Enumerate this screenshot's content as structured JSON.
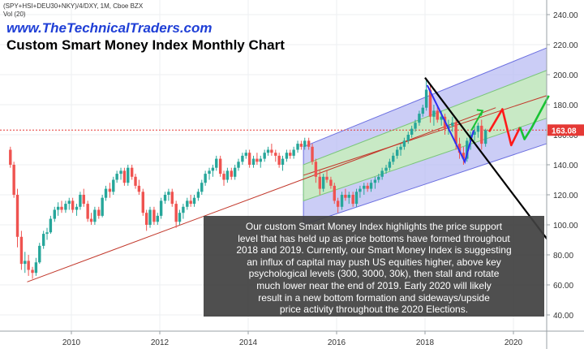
{
  "header": {
    "symbol": "(SPY+HSI+DEU30+NKY)/4/DXY, 1M, Cboe BZX",
    "volume": "Vol (20)",
    "site": "www.TheTechnicalTraders.com",
    "title": "Custom Smart Money Index Monthly Chart"
  },
  "annotation": {
    "lines": [
      "Our custom Smart Money Index highlights the price support",
      "level that has held up as price bottoms have formed throughout",
      "2018 and 2019.  Currently, our Smart Money Index is suggesting",
      "an influx of capital may push US equities higher, above key",
      "psychological levels (300, 3000, 30k), then stall and rotate",
      "much lower near the end of 2019.  Early 2020 will likely",
      "result in a new bottom formation and sideways/upside",
      "price activity throughout the 2020 Elections."
    ]
  },
  "colors": {
    "up": "#26a69a",
    "down": "#ef5350",
    "price_line": "#e53935",
    "channel_outer": "#b9bcf3",
    "channel_inner": "#c8ecc0",
    "trend_line": "#c2382b",
    "projection_red": "#ff1a1a",
    "projection_green": "#19c234",
    "blue_path": "#2f2ff0"
  },
  "chart_data": {
    "type": "candlestick",
    "y_axis": {
      "ticks": [
        "240.00",
        "220.00",
        "200.00",
        "180.00",
        "160.00",
        "140.00",
        "120.00",
        "100.00",
        "80.00",
        "60.00",
        "40.00"
      ],
      "ylim": [
        31,
        245
      ]
    },
    "x_axis": {
      "ticks": [
        "2010",
        "2012",
        "2014",
        "2016",
        "2018",
        "2020"
      ],
      "xlim": [
        2008.55,
        2020.85
      ]
    },
    "last_price": "163.08",
    "last_price_value": 163.08,
    "candles": [
      {
        "t": 2008.62,
        "o": 150,
        "h": 152,
        "l": 138,
        "c": 140
      },
      {
        "t": 2008.7,
        "o": 140,
        "h": 142,
        "l": 118,
        "c": 120
      },
      {
        "t": 2008.78,
        "o": 120,
        "h": 124,
        "l": 85,
        "c": 92
      },
      {
        "t": 2008.87,
        "o": 92,
        "h": 96,
        "l": 70,
        "c": 74
      },
      {
        "t": 2008.95,
        "o": 74,
        "h": 82,
        "l": 68,
        "c": 76
      },
      {
        "t": 2009.03,
        "o": 76,
        "h": 80,
        "l": 66,
        "c": 70
      },
      {
        "t": 2009.12,
        "o": 70,
        "h": 72,
        "l": 64,
        "c": 68
      },
      {
        "t": 2009.2,
        "o": 68,
        "h": 78,
        "l": 66,
        "c": 75
      },
      {
        "t": 2009.28,
        "o": 75,
        "h": 88,
        "l": 74,
        "c": 86
      },
      {
        "t": 2009.37,
        "o": 86,
        "h": 96,
        "l": 84,
        "c": 94
      },
      {
        "t": 2009.45,
        "o": 94,
        "h": 98,
        "l": 90,
        "c": 95
      },
      {
        "t": 2009.53,
        "o": 95,
        "h": 106,
        "l": 94,
        "c": 104
      },
      {
        "t": 2009.62,
        "o": 104,
        "h": 112,
        "l": 102,
        "c": 110
      },
      {
        "t": 2009.7,
        "o": 110,
        "h": 115,
        "l": 106,
        "c": 112
      },
      {
        "t": 2009.78,
        "o": 112,
        "h": 116,
        "l": 108,
        "c": 110
      },
      {
        "t": 2009.87,
        "o": 110,
        "h": 116,
        "l": 108,
        "c": 114
      },
      {
        "t": 2009.95,
        "o": 114,
        "h": 118,
        "l": 110,
        "c": 116
      },
      {
        "t": 2010.03,
        "o": 116,
        "h": 118,
        "l": 108,
        "c": 110
      },
      {
        "t": 2010.12,
        "o": 110,
        "h": 114,
        "l": 106,
        "c": 112
      },
      {
        "t": 2010.2,
        "o": 112,
        "h": 122,
        "l": 110,
        "c": 120
      },
      {
        "t": 2010.28,
        "o": 120,
        "h": 124,
        "l": 112,
        "c": 114
      },
      {
        "t": 2010.37,
        "o": 114,
        "h": 116,
        "l": 102,
        "c": 104
      },
      {
        "t": 2010.45,
        "o": 104,
        "h": 108,
        "l": 100,
        "c": 102
      },
      {
        "t": 2010.53,
        "o": 102,
        "h": 112,
        "l": 100,
        "c": 110
      },
      {
        "t": 2010.62,
        "o": 110,
        "h": 112,
        "l": 104,
        "c": 106
      },
      {
        "t": 2010.7,
        "o": 106,
        "h": 120,
        "l": 105,
        "c": 118
      },
      {
        "t": 2010.78,
        "o": 118,
        "h": 126,
        "l": 116,
        "c": 124
      },
      {
        "t": 2010.87,
        "o": 124,
        "h": 128,
        "l": 118,
        "c": 122
      },
      {
        "t": 2010.95,
        "o": 122,
        "h": 132,
        "l": 120,
        "c": 130
      },
      {
        "t": 2011.03,
        "o": 130,
        "h": 136,
        "l": 128,
        "c": 134
      },
      {
        "t": 2011.12,
        "o": 134,
        "h": 138,
        "l": 130,
        "c": 136
      },
      {
        "t": 2011.2,
        "o": 136,
        "h": 138,
        "l": 126,
        "c": 128
      },
      {
        "t": 2011.28,
        "o": 128,
        "h": 140,
        "l": 126,
        "c": 138
      },
      {
        "t": 2011.37,
        "o": 138,
        "h": 140,
        "l": 130,
        "c": 132
      },
      {
        "t": 2011.45,
        "o": 132,
        "h": 134,
        "l": 124,
        "c": 126
      },
      {
        "t": 2011.53,
        "o": 126,
        "h": 130,
        "l": 120,
        "c": 122
      },
      {
        "t": 2011.62,
        "o": 122,
        "h": 124,
        "l": 106,
        "c": 108
      },
      {
        "t": 2011.7,
        "o": 108,
        "h": 110,
        "l": 96,
        "c": 100
      },
      {
        "t": 2011.78,
        "o": 100,
        "h": 112,
        "l": 98,
        "c": 110
      },
      {
        "t": 2011.87,
        "o": 110,
        "h": 112,
        "l": 100,
        "c": 102
      },
      {
        "t": 2011.95,
        "o": 102,
        "h": 108,
        "l": 100,
        "c": 106
      },
      {
        "t": 2012.03,
        "o": 106,
        "h": 118,
        "l": 104,
        "c": 116
      },
      {
        "t": 2012.12,
        "o": 116,
        "h": 122,
        "l": 114,
        "c": 120
      },
      {
        "t": 2012.2,
        "o": 120,
        "h": 124,
        "l": 116,
        "c": 122
      },
      {
        "t": 2012.28,
        "o": 122,
        "h": 124,
        "l": 112,
        "c": 114
      },
      {
        "t": 2012.37,
        "o": 114,
        "h": 116,
        "l": 98,
        "c": 102
      },
      {
        "t": 2012.45,
        "o": 102,
        "h": 110,
        "l": 100,
        "c": 108
      },
      {
        "t": 2012.53,
        "o": 108,
        "h": 114,
        "l": 104,
        "c": 112
      },
      {
        "t": 2012.62,
        "o": 112,
        "h": 118,
        "l": 110,
        "c": 116
      },
      {
        "t": 2012.7,
        "o": 116,
        "h": 120,
        "l": 112,
        "c": 114
      },
      {
        "t": 2012.78,
        "o": 114,
        "h": 120,
        "l": 112,
        "c": 118
      },
      {
        "t": 2012.87,
        "o": 118,
        "h": 124,
        "l": 116,
        "c": 122
      },
      {
        "t": 2012.95,
        "o": 122,
        "h": 130,
        "l": 120,
        "c": 128
      },
      {
        "t": 2013.03,
        "o": 128,
        "h": 136,
        "l": 126,
        "c": 134
      },
      {
        "t": 2013.12,
        "o": 134,
        "h": 138,
        "l": 130,
        "c": 136
      },
      {
        "t": 2013.2,
        "o": 136,
        "h": 140,
        "l": 132,
        "c": 138
      },
      {
        "t": 2013.28,
        "o": 138,
        "h": 146,
        "l": 136,
        "c": 144
      },
      {
        "t": 2013.37,
        "o": 144,
        "h": 146,
        "l": 132,
        "c": 134
      },
      {
        "t": 2013.45,
        "o": 134,
        "h": 136,
        "l": 126,
        "c": 130
      },
      {
        "t": 2013.53,
        "o": 130,
        "h": 138,
        "l": 128,
        "c": 136
      },
      {
        "t": 2013.62,
        "o": 136,
        "h": 138,
        "l": 130,
        "c": 132
      },
      {
        "t": 2013.7,
        "o": 132,
        "h": 140,
        "l": 130,
        "c": 138
      },
      {
        "t": 2013.78,
        "o": 138,
        "h": 144,
        "l": 136,
        "c": 142
      },
      {
        "t": 2013.87,
        "o": 142,
        "h": 148,
        "l": 140,
        "c": 146
      },
      {
        "t": 2013.95,
        "o": 146,
        "h": 150,
        "l": 144,
        "c": 148
      },
      {
        "t": 2014.03,
        "o": 148,
        "h": 150,
        "l": 138,
        "c": 140
      },
      {
        "t": 2014.12,
        "o": 140,
        "h": 146,
        "l": 138,
        "c": 144
      },
      {
        "t": 2014.2,
        "o": 144,
        "h": 148,
        "l": 140,
        "c": 142
      },
      {
        "t": 2014.28,
        "o": 142,
        "h": 146,
        "l": 138,
        "c": 144
      },
      {
        "t": 2014.37,
        "o": 144,
        "h": 150,
        "l": 142,
        "c": 148
      },
      {
        "t": 2014.45,
        "o": 148,
        "h": 152,
        "l": 146,
        "c": 150
      },
      {
        "t": 2014.53,
        "o": 150,
        "h": 154,
        "l": 146,
        "c": 148
      },
      {
        "t": 2014.62,
        "o": 148,
        "h": 150,
        "l": 142,
        "c": 146
      },
      {
        "t": 2014.7,
        "o": 146,
        "h": 148,
        "l": 138,
        "c": 140
      },
      {
        "t": 2014.78,
        "o": 140,
        "h": 146,
        "l": 136,
        "c": 144
      },
      {
        "t": 2014.87,
        "o": 144,
        "h": 150,
        "l": 142,
        "c": 148
      },
      {
        "t": 2014.95,
        "o": 148,
        "h": 150,
        "l": 144,
        "c": 146
      },
      {
        "t": 2015.03,
        "o": 146,
        "h": 152,
        "l": 144,
        "c": 150
      },
      {
        "t": 2015.12,
        "o": 150,
        "h": 156,
        "l": 148,
        "c": 154
      },
      {
        "t": 2015.2,
        "o": 154,
        "h": 156,
        "l": 150,
        "c": 152
      },
      {
        "t": 2015.28,
        "o": 152,
        "h": 158,
        "l": 150,
        "c": 156
      },
      {
        "t": 2015.37,
        "o": 156,
        "h": 158,
        "l": 150,
        "c": 152
      },
      {
        "t": 2015.45,
        "o": 152,
        "h": 154,
        "l": 140,
        "c": 142
      },
      {
        "t": 2015.53,
        "o": 142,
        "h": 144,
        "l": 128,
        "c": 132
      },
      {
        "t": 2015.62,
        "o": 132,
        "h": 136,
        "l": 120,
        "c": 124
      },
      {
        "t": 2015.7,
        "o": 124,
        "h": 134,
        "l": 122,
        "c": 132
      },
      {
        "t": 2015.78,
        "o": 132,
        "h": 136,
        "l": 128,
        "c": 130
      },
      {
        "t": 2015.87,
        "o": 130,
        "h": 132,
        "l": 124,
        "c": 126
      },
      {
        "t": 2015.95,
        "o": 126,
        "h": 128,
        "l": 114,
        "c": 116
      },
      {
        "t": 2016.03,
        "o": 116,
        "h": 118,
        "l": 108,
        "c": 112
      },
      {
        "t": 2016.12,
        "o": 112,
        "h": 122,
        "l": 110,
        "c": 120
      },
      {
        "t": 2016.2,
        "o": 120,
        "h": 124,
        "l": 116,
        "c": 118
      },
      {
        "t": 2016.28,
        "o": 118,
        "h": 122,
        "l": 114,
        "c": 120
      },
      {
        "t": 2016.37,
        "o": 120,
        "h": 122,
        "l": 112,
        "c": 114
      },
      {
        "t": 2016.45,
        "o": 114,
        "h": 124,
        "l": 112,
        "c": 122
      },
      {
        "t": 2016.53,
        "o": 122,
        "h": 126,
        "l": 118,
        "c": 124
      },
      {
        "t": 2016.62,
        "o": 124,
        "h": 128,
        "l": 120,
        "c": 126
      },
      {
        "t": 2016.7,
        "o": 126,
        "h": 128,
        "l": 122,
        "c": 124
      },
      {
        "t": 2016.78,
        "o": 124,
        "h": 130,
        "l": 122,
        "c": 128
      },
      {
        "t": 2016.87,
        "o": 128,
        "h": 132,
        "l": 124,
        "c": 130
      },
      {
        "t": 2016.95,
        "o": 130,
        "h": 134,
        "l": 128,
        "c": 132
      },
      {
        "t": 2017.03,
        "o": 132,
        "h": 138,
        "l": 130,
        "c": 136
      },
      {
        "t": 2017.12,
        "o": 136,
        "h": 140,
        "l": 134,
        "c": 138
      },
      {
        "t": 2017.2,
        "o": 138,
        "h": 144,
        "l": 136,
        "c": 142
      },
      {
        "t": 2017.28,
        "o": 142,
        "h": 148,
        "l": 140,
        "c": 146
      },
      {
        "t": 2017.37,
        "o": 146,
        "h": 152,
        "l": 144,
        "c": 150
      },
      {
        "t": 2017.45,
        "o": 150,
        "h": 154,
        "l": 146,
        "c": 152
      },
      {
        "t": 2017.53,
        "o": 152,
        "h": 158,
        "l": 150,
        "c": 156
      },
      {
        "t": 2017.62,
        "o": 156,
        "h": 162,
        "l": 154,
        "c": 160
      },
      {
        "t": 2017.7,
        "o": 160,
        "h": 166,
        "l": 158,
        "c": 164
      },
      {
        "t": 2017.78,
        "o": 164,
        "h": 170,
        "l": 162,
        "c": 168
      },
      {
        "t": 2017.87,
        "o": 168,
        "h": 176,
        "l": 166,
        "c": 174
      },
      {
        "t": 2017.95,
        "o": 174,
        "h": 180,
        "l": 172,
        "c": 178
      },
      {
        "t": 2018.03,
        "o": 178,
        "h": 197,
        "l": 176,
        "c": 190
      },
      {
        "t": 2018.12,
        "o": 190,
        "h": 194,
        "l": 168,
        "c": 172
      },
      {
        "t": 2018.2,
        "o": 172,
        "h": 180,
        "l": 166,
        "c": 176
      },
      {
        "t": 2018.28,
        "o": 176,
        "h": 180,
        "l": 168,
        "c": 170
      },
      {
        "t": 2018.37,
        "o": 170,
        "h": 176,
        "l": 166,
        "c": 172
      },
      {
        "t": 2018.45,
        "o": 172,
        "h": 174,
        "l": 160,
        "c": 164
      },
      {
        "t": 2018.53,
        "o": 164,
        "h": 170,
        "l": 160,
        "c": 166
      },
      {
        "t": 2018.62,
        "o": 166,
        "h": 172,
        "l": 162,
        "c": 168
      },
      {
        "t": 2018.7,
        "o": 168,
        "h": 170,
        "l": 150,
        "c": 154
      },
      {
        "t": 2018.78,
        "o": 154,
        "h": 158,
        "l": 144,
        "c": 148
      },
      {
        "t": 2018.87,
        "o": 148,
        "h": 152,
        "l": 140,
        "c": 144
      },
      {
        "t": 2018.95,
        "o": 144,
        "h": 158,
        "l": 142,
        "c": 156
      },
      {
        "t": 2019.03,
        "o": 156,
        "h": 162,
        "l": 150,
        "c": 160
      },
      {
        "t": 2019.12,
        "o": 160,
        "h": 166,
        "l": 156,
        "c": 162
      },
      {
        "t": 2019.2,
        "o": 162,
        "h": 168,
        "l": 158,
        "c": 166
      },
      {
        "t": 2019.28,
        "o": 166,
        "h": 170,
        "l": 150,
        "c": 154
      },
      {
        "t": 2019.37,
        "o": 154,
        "h": 164,
        "l": 152,
        "c": 163
      }
    ],
    "channel": {
      "t0": 2015.25,
      "t1": 2020.85,
      "outer_top": [
        152,
        219
      ],
      "inner_top": [
        140,
        204
      ],
      "inner_bottom": [
        116,
        172
      ],
      "outer_bottom": [
        100,
        155
      ]
    },
    "mid_trend": {
      "t0": 2015.25,
      "t1": 2020.85,
      "y": [
        133,
        187
      ]
    },
    "support_line": {
      "t0": 2009.0,
      "t1": 2019.6,
      "y": [
        62,
        178
      ]
    },
    "down_trend": {
      "t0": 2018.0,
      "t1": 2020.85,
      "y": [
        198,
        87
      ]
    },
    "blue_path": [
      [
        2018.05,
        193
      ],
      [
        2018.9,
        142
      ],
      [
        2019.1,
        163
      ]
    ],
    "projection_green_small": [
      [
        2019.05,
        163
      ],
      [
        2019.3,
        176
      ]
    ],
    "projection": [
      {
        "color": "red",
        "pts": [
          [
            2019.45,
            162
          ],
          [
            2019.75,
            177
          ],
          [
            2019.95,
            153
          ],
          [
            2020.15,
            165
          ]
        ]
      },
      {
        "color": "green",
        "pts": [
          [
            2020.15,
            165
          ],
          [
            2020.25,
            157
          ],
          [
            2020.4,
            164
          ],
          [
            2020.8,
            186
          ]
        ]
      }
    ]
  }
}
